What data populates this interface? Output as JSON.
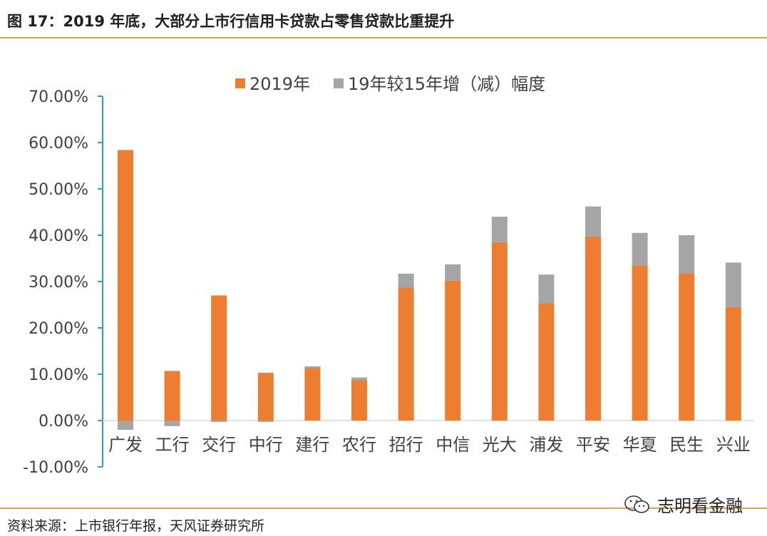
{
  "title": "图 17：2019 年底，大部分上市行信用卡贷款占零售贷款比重提升",
  "source": "资料来源：上市银行年报，天风证券研究所",
  "watermark": {
    "text": "志明看金融",
    "icon": "wechat-icon"
  },
  "colors": {
    "accent_rule": "#e3a34e",
    "series_2019": "#ed7d31",
    "series_change": "#a5a5a5",
    "axis": "#2aa3c9"
  },
  "chart_data": {
    "type": "bar",
    "stacked": true,
    "categories": [
      "广发",
      "工行",
      "交行",
      "中行",
      "建行",
      "农行",
      "招行",
      "中信",
      "光大",
      "浦发",
      "平安",
      "华夏",
      "民生",
      "兴业"
    ],
    "series": [
      {
        "name": "2019年",
        "values": [
          58.4,
          10.7,
          27.0,
          10.3,
          11.3,
          8.7,
          28.7,
          30.2,
          38.5,
          25.3,
          39.7,
          33.5,
          31.8,
          24.5
        ]
      },
      {
        "name": "19年较15年增（减）幅度",
        "values": [
          -2.0,
          -1.2,
          -0.3,
          -0.3,
          0.4,
          0.6,
          3.0,
          3.5,
          5.5,
          6.2,
          6.5,
          7.0,
          8.2,
          9.6
        ]
      }
    ],
    "ylim": [
      -10,
      70
    ],
    "yticks": [
      "70.00%",
      "60.00%",
      "50.00%",
      "40.00%",
      "30.00%",
      "20.00%",
      "10.00%",
      "0.00%",
      "-10.00%"
    ],
    "ytick_values": [
      70,
      60,
      50,
      40,
      30,
      20,
      10,
      0,
      -10
    ],
    "legend_position": "top",
    "grid": false
  }
}
